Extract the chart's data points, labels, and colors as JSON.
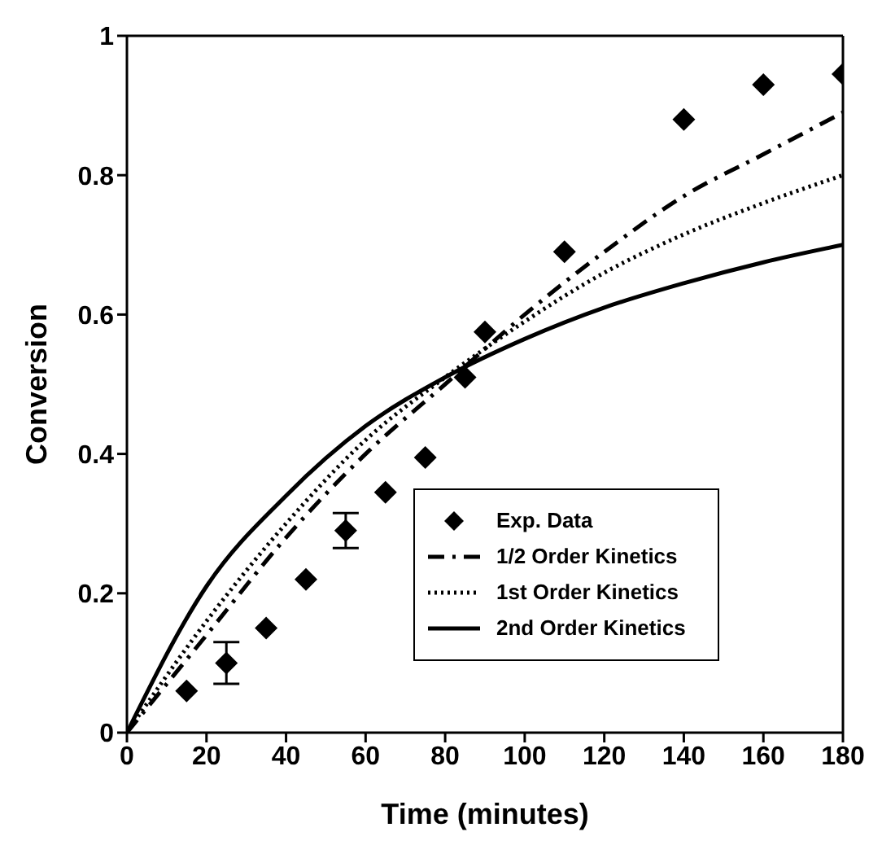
{
  "chart_data": {
    "type": "line",
    "xlabel": "Time (minutes)",
    "ylabel": "Conversion",
    "xlim": [
      0,
      180
    ],
    "xticks": [
      0,
      20,
      40,
      60,
      80,
      100,
      120,
      140,
      160,
      180
    ],
    "ylim": [
      0,
      1
    ],
    "yticks": [
      0,
      0.2,
      0.4,
      0.6,
      0.8,
      1
    ],
    "grid": false,
    "legend": "bottom right",
    "series": [
      {
        "name": "Exp. Data",
        "type": "scatter",
        "marker": "diamond",
        "color": "#000000",
        "x": [
          15,
          25,
          35,
          45,
          55,
          65,
          75,
          85,
          90,
          110,
          140,
          160,
          180
        ],
        "values": [
          0.06,
          0.1,
          0.15,
          0.22,
          0.29,
          0.345,
          0.395,
          0.51,
          0.575,
          0.69,
          0.88,
          0.93,
          0.945
        ],
        "errors": [
          null,
          0.03,
          null,
          null,
          0.025,
          null,
          null,
          null,
          null,
          null,
          null,
          null,
          null
        ]
      },
      {
        "name": "1/2 Order Kinetics",
        "line_style": "dashed",
        "color": "#000000",
        "x": [
          0,
          20,
          40,
          60,
          80,
          100,
          120,
          140,
          160,
          180
        ],
        "values": [
          0,
          0.14,
          0.28,
          0.4,
          0.5,
          0.6,
          0.69,
          0.77,
          0.83,
          0.89
        ]
      },
      {
        "name": "1st Order Kinetics",
        "line_style": "dotted",
        "color": "#000000",
        "x": [
          0,
          20,
          40,
          60,
          80,
          100,
          120,
          140,
          160,
          180
        ],
        "values": [
          0,
          0.16,
          0.3,
          0.42,
          0.51,
          0.59,
          0.66,
          0.715,
          0.76,
          0.8
        ]
      },
      {
        "name": "2nd Order Kinetics",
        "line_style": "solid",
        "color": "#000000",
        "x": [
          0,
          20,
          40,
          60,
          80,
          100,
          120,
          140,
          160,
          180
        ],
        "values": [
          0,
          0.21,
          0.34,
          0.44,
          0.51,
          0.565,
          0.61,
          0.645,
          0.675,
          0.7
        ]
      }
    ]
  }
}
